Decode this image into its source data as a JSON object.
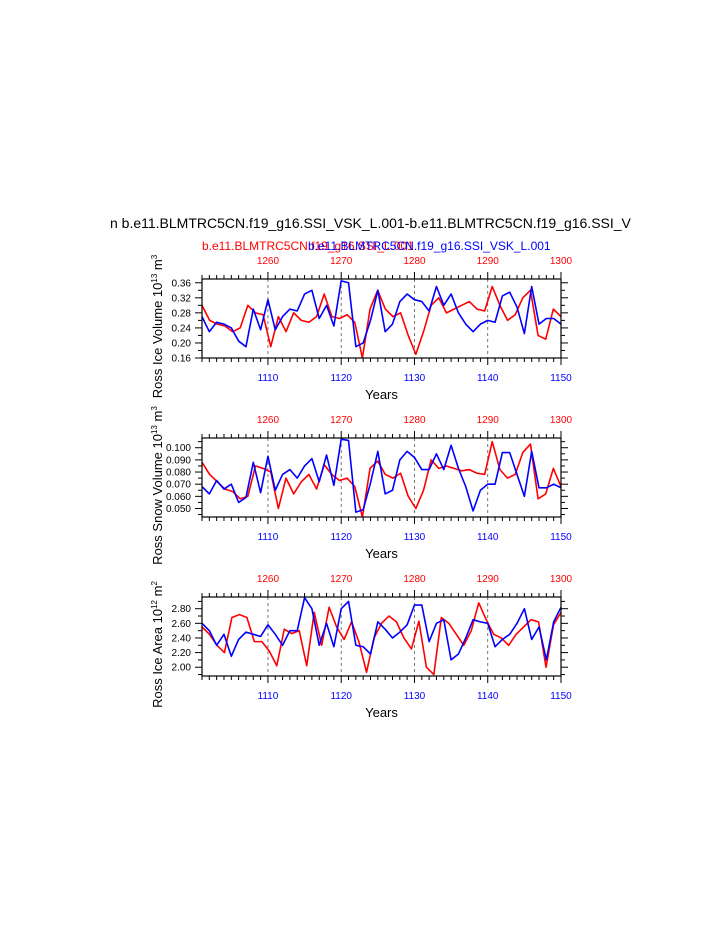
{
  "figure": {
    "title": "n b.e11.BLMTRC5CN.f19_g16.SSI_VSK_L.001-b.e11.BLMTRC5CN.f19_g16.SSI_V",
    "legend_red": "b.e11.BLMTRC5CN.f19_g16.SSI_L.001",
    "legend_blue": "b.e11.BLMTRC5CN.f19_g16.SSI_VSK_L.001",
    "colors": {
      "series_a": "#ff0000",
      "series_b": "#0000ff",
      "axis": "#000000",
      "gridline": "#555555"
    }
  },
  "chart_data": [
    {
      "type": "line",
      "ylabel_main": "Ross Ice Volume 10",
      "ylabel_exp": "13",
      "ylabel_unit": " m",
      "ylabel_unit_exp": "3",
      "xlabel": "Years",
      "x_bottom": {
        "min": 1101,
        "max": 1150,
        "ticks": [
          1110,
          1120,
          1130,
          1140,
          1150
        ],
        "color": "#0000ff"
      },
      "x_top": {
        "min": 1251,
        "max": 1300,
        "ticks": [
          1260,
          1270,
          1280,
          1290,
          1300
        ],
        "color": "#ff0000"
      },
      "ylim": [
        0.16,
        0.37
      ],
      "yticks": [
        0.16,
        0.2,
        0.24,
        0.28,
        0.32,
        0.36
      ],
      "ytick_labels": [
        "0.16",
        "0.20",
        "0.24",
        "0.28",
        "0.32",
        "0.36"
      ],
      "series": [
        {
          "color": "#ff0000",
          "axis": "top",
          "values": [
            0.3,
            0.26,
            0.25,
            0.245,
            0.23,
            0.24,
            0.3,
            0.28,
            0.275,
            0.19,
            0.27,
            0.23,
            0.28,
            0.26,
            0.255,
            0.27,
            0.33,
            0.27,
            0.265,
            0.275,
            0.255,
            0.16,
            0.29,
            0.34,
            0.29,
            0.27,
            0.28,
            0.22,
            0.17,
            0.23,
            0.3,
            0.32,
            0.28,
            0.29,
            0.3,
            0.31,
            0.29,
            0.285,
            0.35,
            0.3,
            0.26,
            0.275,
            0.32,
            0.34,
            0.22,
            0.21,
            0.29,
            0.27
          ]
        },
        {
          "color": "#0000ff",
          "axis": "bottom",
          "values": [
            0.27,
            0.23,
            0.255,
            0.25,
            0.24,
            0.205,
            0.19,
            0.29,
            0.235,
            0.315,
            0.235,
            0.27,
            0.29,
            0.285,
            0.33,
            0.34,
            0.265,
            0.3,
            0.245,
            0.365,
            0.36,
            0.19,
            0.2,
            0.26,
            0.34,
            0.23,
            0.25,
            0.31,
            0.33,
            0.315,
            0.31,
            0.285,
            0.35,
            0.3,
            0.33,
            0.28,
            0.25,
            0.23,
            0.25,
            0.26,
            0.255,
            0.325,
            0.335,
            0.295,
            0.225,
            0.35,
            0.25,
            0.265,
            0.265,
            0.25
          ]
        }
      ]
    },
    {
      "type": "line",
      "ylabel_main": "Ross Snow Volume 10",
      "ylabel_exp": "13",
      "ylabel_unit": " m",
      "ylabel_unit_exp": "3",
      "xlabel": "Years",
      "x_bottom": {
        "min": 1101,
        "max": 1150,
        "ticks": [
          1110,
          1120,
          1130,
          1140,
          1150
        ],
        "color": "#0000ff"
      },
      "x_top": {
        "min": 1251,
        "max": 1300,
        "ticks": [
          1260,
          1270,
          1280,
          1290,
          1300
        ],
        "color": "#ff0000"
      },
      "ylim": [
        0.043,
        0.108
      ],
      "yticks": [
        0.05,
        0.06,
        0.07,
        0.08,
        0.09,
        0.1
      ],
      "ytick_labels": [
        "0.050",
        "0.060",
        "0.070",
        "0.080",
        "0.090",
        "0.100"
      ],
      "series": [
        {
          "color": "#ff0000",
          "axis": "top",
          "values": [
            0.088,
            0.078,
            0.072,
            0.066,
            0.064,
            0.058,
            0.06,
            0.085,
            0.083,
            0.08,
            0.05,
            0.075,
            0.062,
            0.072,
            0.078,
            0.066,
            0.086,
            0.078,
            0.073,
            0.075,
            0.068,
            0.043,
            0.083,
            0.089,
            0.078,
            0.075,
            0.079,
            0.06,
            0.05,
            0.065,
            0.09,
            0.083,
            0.085,
            0.083,
            0.081,
            0.082,
            0.079,
            0.078,
            0.105,
            0.082,
            0.075,
            0.078,
            0.096,
            0.103,
            0.058,
            0.062,
            0.083,
            0.068
          ]
        },
        {
          "color": "#0000ff",
          "axis": "bottom",
          "values": [
            0.068,
            0.062,
            0.073,
            0.066,
            0.07,
            0.055,
            0.059,
            0.088,
            0.063,
            0.093,
            0.065,
            0.078,
            0.082,
            0.075,
            0.085,
            0.091,
            0.072,
            0.094,
            0.069,
            0.107,
            0.106,
            0.047,
            0.049,
            0.071,
            0.097,
            0.062,
            0.065,
            0.09,
            0.097,
            0.092,
            0.082,
            0.082,
            0.095,
            0.082,
            0.102,
            0.083,
            0.068,
            0.048,
            0.065,
            0.07,
            0.07,
            0.096,
            0.096,
            0.078,
            0.06,
            0.097,
            0.067,
            0.067,
            0.07,
            0.067
          ]
        }
      ]
    },
    {
      "type": "line",
      "ylabel_main": "Ross Ice Area 10",
      "ylabel_exp": "12",
      "ylabel_unit": " m",
      "ylabel_unit_exp": "2",
      "xlabel": "Years",
      "x_bottom": {
        "min": 1101,
        "max": 1150,
        "ticks": [
          1110,
          1120,
          1130,
          1140,
          1150
        ],
        "color": "#0000ff"
      },
      "x_top": {
        "min": 1251,
        "max": 1300,
        "ticks": [
          1260,
          1270,
          1280,
          1290,
          1300
        ],
        "color": "#ff0000"
      },
      "ylim": [
        1.88,
        2.96
      ],
      "yticks": [
        2.0,
        2.2,
        2.4,
        2.6,
        2.8
      ],
      "ytick_labels": [
        "2.00",
        "2.20",
        "2.40",
        "2.60",
        "2.80"
      ],
      "series": [
        {
          "color": "#ff0000",
          "axis": "top",
          "values": [
            2.55,
            2.45,
            2.3,
            2.2,
            2.68,
            2.72,
            2.68,
            2.35,
            2.35,
            2.22,
            2.02,
            2.52,
            2.46,
            2.5,
            2.02,
            2.75,
            2.3,
            2.82,
            2.55,
            2.38,
            2.62,
            2.34,
            1.93,
            2.4,
            2.6,
            2.7,
            2.62,
            2.4,
            2.25,
            2.63,
            2.0,
            1.9,
            2.68,
            2.6,
            2.45,
            2.3,
            2.5,
            2.88,
            2.65,
            2.45,
            2.4,
            2.3,
            2.45,
            2.55,
            2.65,
            2.62,
            2.0,
            2.58,
            2.75
          ]
        },
        {
          "color": "#0000ff",
          "axis": "bottom",
          "values": [
            2.6,
            2.5,
            2.3,
            2.45,
            2.15,
            2.38,
            2.48,
            2.45,
            2.42,
            2.58,
            2.45,
            2.3,
            2.5,
            2.5,
            2.95,
            2.8,
            2.3,
            2.6,
            2.28,
            2.8,
            2.9,
            2.3,
            2.28,
            2.18,
            2.62,
            2.52,
            2.4,
            2.48,
            2.58,
            2.85,
            2.85,
            2.35,
            2.6,
            2.65,
            2.1,
            2.18,
            2.4,
            2.65,
            2.62,
            2.6,
            2.28,
            2.38,
            2.45,
            2.6,
            2.8,
            2.38,
            2.55,
            2.1,
            2.62,
            2.82
          ]
        }
      ]
    }
  ]
}
